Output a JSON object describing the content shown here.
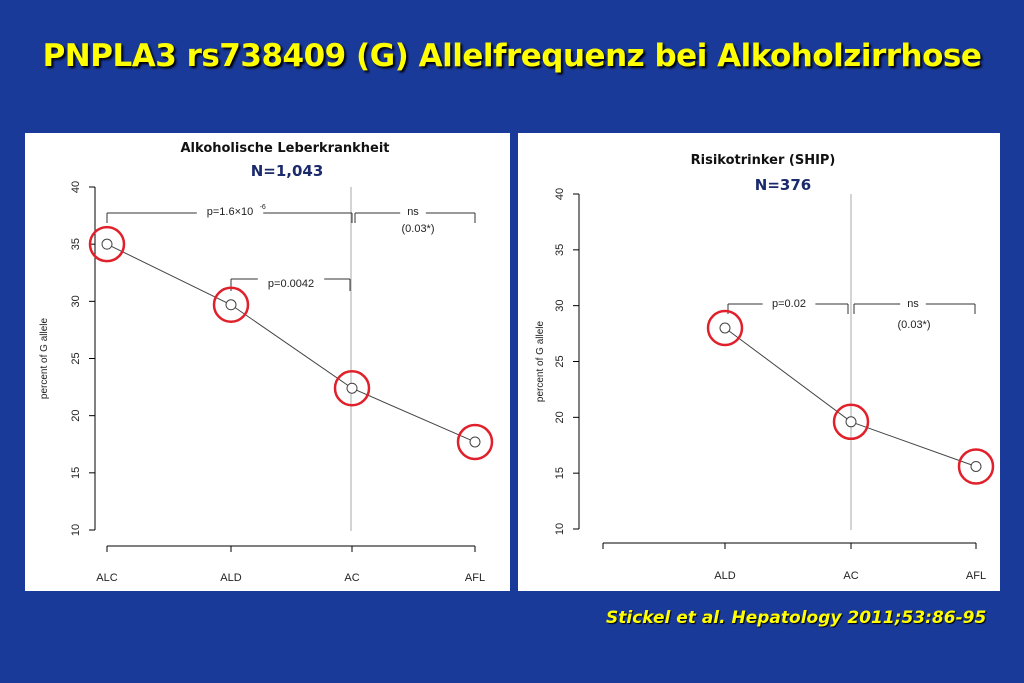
{
  "slide": {
    "title": "PNPLA3 rs738409 (G) Allelfrequenz bei Alkoholzirrhose",
    "citation": "Stickel et al. Hepatology 2011;53:86-95",
    "colors": {
      "background": "#1a3a9a",
      "title": "#ffff00",
      "highlight_circle": "#e0202a",
      "subtitle_n": "#1a2a6a"
    }
  },
  "chart_data": [
    {
      "type": "line",
      "title": "Alkoholische Leberkrankheit",
      "subtitle": "N=1,043",
      "ylabel": "percent of G allele",
      "ylim": [
        10,
        40
      ],
      "yticks": [
        "10",
        "15",
        "20",
        "25",
        "30",
        "35",
        "40"
      ],
      "categories": [
        "ALC",
        "ALD",
        "AC",
        "AFL"
      ],
      "values": [
        35.0,
        29.7,
        22.4,
        17.7
      ],
      "highlighted": [
        true,
        true,
        true,
        true
      ],
      "vertical_divider_after_category": "AC",
      "annotations": [
        {
          "text": "p=1.6×10",
          "superscript": "-6",
          "from": "ALC",
          "to": "AC"
        },
        {
          "text": "ns",
          "from": "AC",
          "to": "AFL"
        },
        {
          "text": "(0.03*)",
          "from": "AC",
          "to": "AFL"
        },
        {
          "text": "p=0.0042",
          "from": "ALD",
          "to": "AC"
        }
      ]
    },
    {
      "type": "line",
      "title": "Risikotrinker (SHIP)",
      "subtitle": "N=376",
      "ylabel": "percent of G allele",
      "ylim": [
        10,
        40
      ],
      "yticks": [
        "10",
        "15",
        "20",
        "25",
        "30",
        "35",
        "40"
      ],
      "categories": [
        "ALD",
        "AC",
        "AFL"
      ],
      "values": [
        28.0,
        19.6,
        15.6
      ],
      "highlighted": [
        true,
        true,
        true
      ],
      "vertical_divider_after_category": "AC",
      "annotations": [
        {
          "text": "p=0.02",
          "from": "ALD",
          "to": "AC"
        },
        {
          "text": "ns",
          "from": "AC",
          "to": "AFL"
        },
        {
          "text": "(0.03*)",
          "from": "AC",
          "to": "AFL"
        }
      ]
    }
  ]
}
